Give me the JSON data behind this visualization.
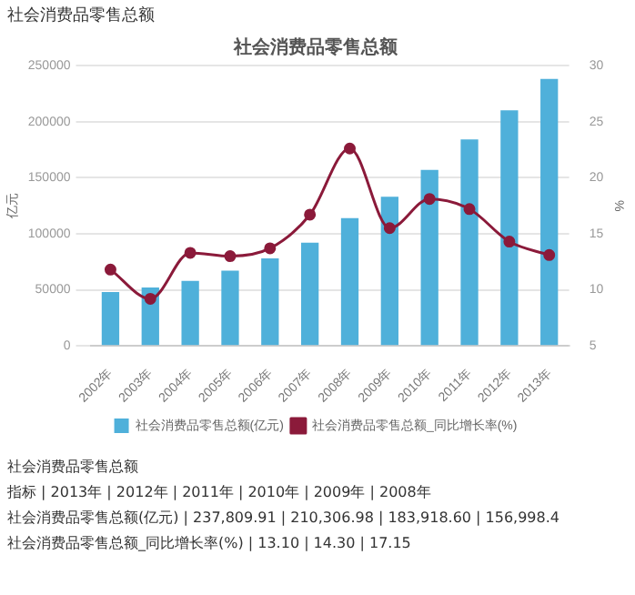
{
  "chart_data": {
    "type": "bar",
    "title": "社会消费品零售总额",
    "ylabel": "亿元",
    "y2label": "%",
    "categories": [
      "2002年",
      "2003年",
      "2004年",
      "2005年",
      "2006年",
      "2007年",
      "2008年",
      "2009年",
      "2010年",
      "2011年",
      "2012年",
      "2013年"
    ],
    "series": [
      {
        "name": "社会消费品零售总额(亿元)",
        "color": "#4fb0da",
        "values": [
          48000,
          52000,
          58000,
          67000,
          78000,
          92000,
          114000,
          133000,
          157000,
          184000,
          210000,
          238000
        ]
      },
      {
        "name": "社会消费品零售总额_同比增长率(%)",
        "type": "line",
        "axis": "y2",
        "color": "#8b1a3a",
        "marker": "circle",
        "values": [
          11.8,
          9.2,
          13.3,
          13.0,
          13.7,
          16.7,
          22.6,
          15.5,
          18.1,
          17.2,
          14.3,
          13.1
        ]
      }
    ],
    "ylim": [
      0,
      250000
    ],
    "yticks": [
      0,
      50000,
      100000,
      150000,
      200000,
      250000
    ],
    "y2lim": [
      5,
      30
    ],
    "y2ticks": [
      5,
      10,
      15,
      20,
      25,
      30
    ],
    "grid": "y",
    "legend": "bottom",
    "annotations": [
      "社会消费品零售总额",
      "社会消费品零售总额",
      "指标 | 2013年 | 2012年 | 2011年 | 2010年 | 2009年 | 2008年",
      "社会消费品零售总额(亿元) | 237,809.91 | 210,306.98 | 183,918.60 | 156,998.4",
      "社会消费品零售总额_同比增长率(%) | 13.10 | 14.30 | 17.15"
    ]
  }
}
